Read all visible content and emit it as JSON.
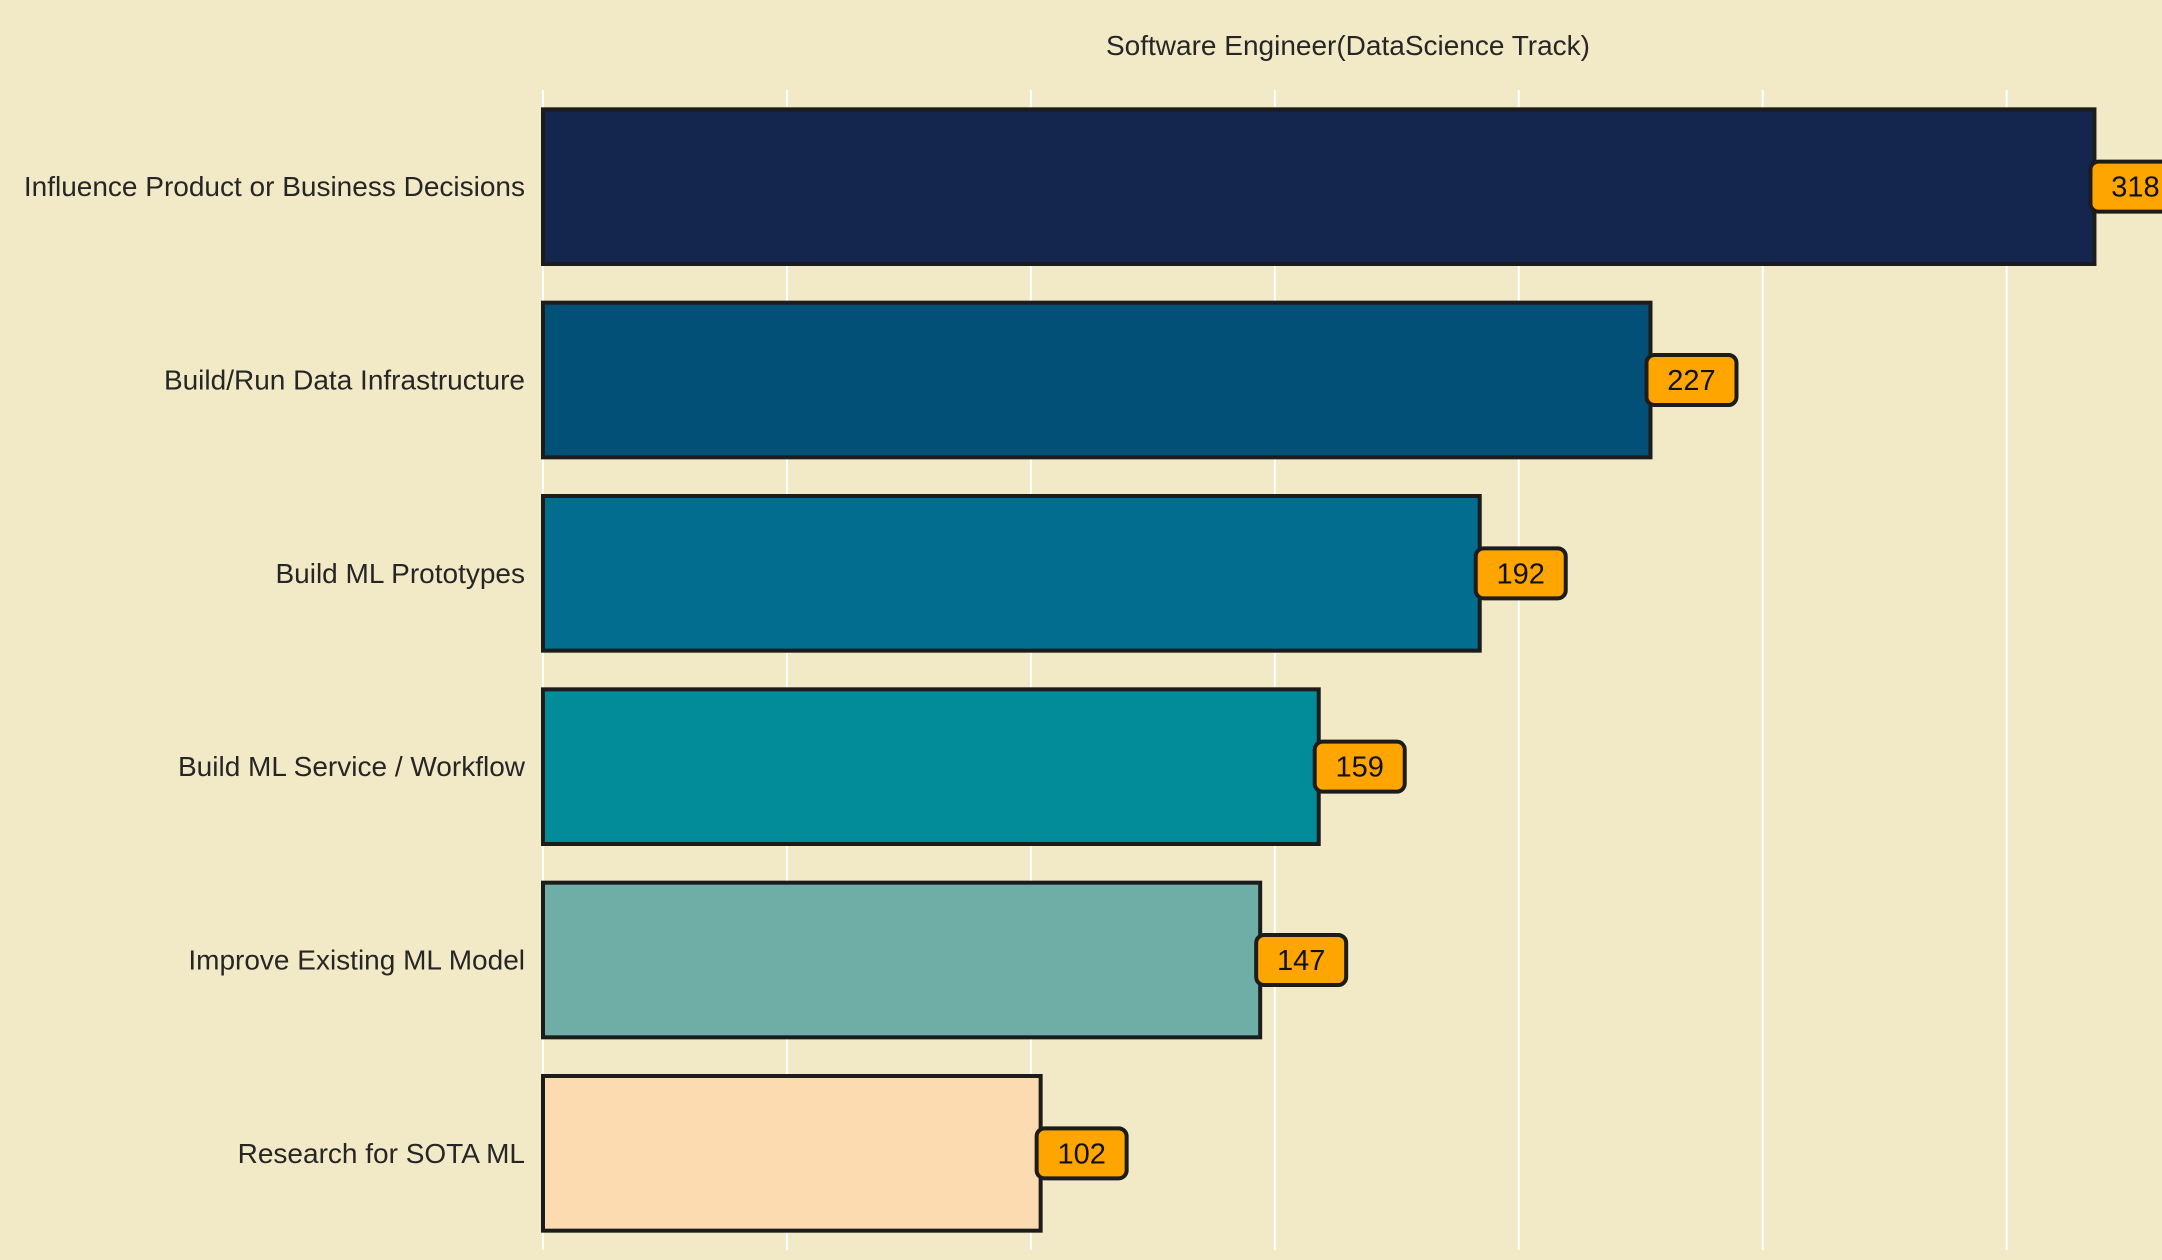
{
  "chart_data": {
    "type": "bar",
    "orientation": "horizontal",
    "title": "Software Engineer(DataScience Track)",
    "xlabel": "",
    "ylabel": "",
    "categories": [
      "Influence Product or Business Decisions",
      "Build/Run Data Infrastructure",
      "Build ML Prototypes",
      "Build ML Service / Workflow",
      "Improve Existing ML Model",
      "Research for SOTA ML"
    ],
    "values": [
      318,
      227,
      192,
      159,
      147,
      102
    ],
    "bar_colors": [
      "#14254e",
      "#025078",
      "#036d8f",
      "#028b98",
      "#6eaea6",
      "#fcdbb0"
    ],
    "xlim": [
      0,
      330
    ],
    "x_gridlines": [
      0,
      50,
      100,
      150,
      200,
      250,
      300
    ],
    "x_tick_labels_shown": false,
    "grid": true,
    "legend": "none",
    "value_labels": true,
    "colors": {
      "background": "#f2e9c6",
      "gridline": "#ffffff",
      "bar_edge": "#1c1c1c",
      "label_box": "#ffa500",
      "text": "#262626"
    }
  }
}
